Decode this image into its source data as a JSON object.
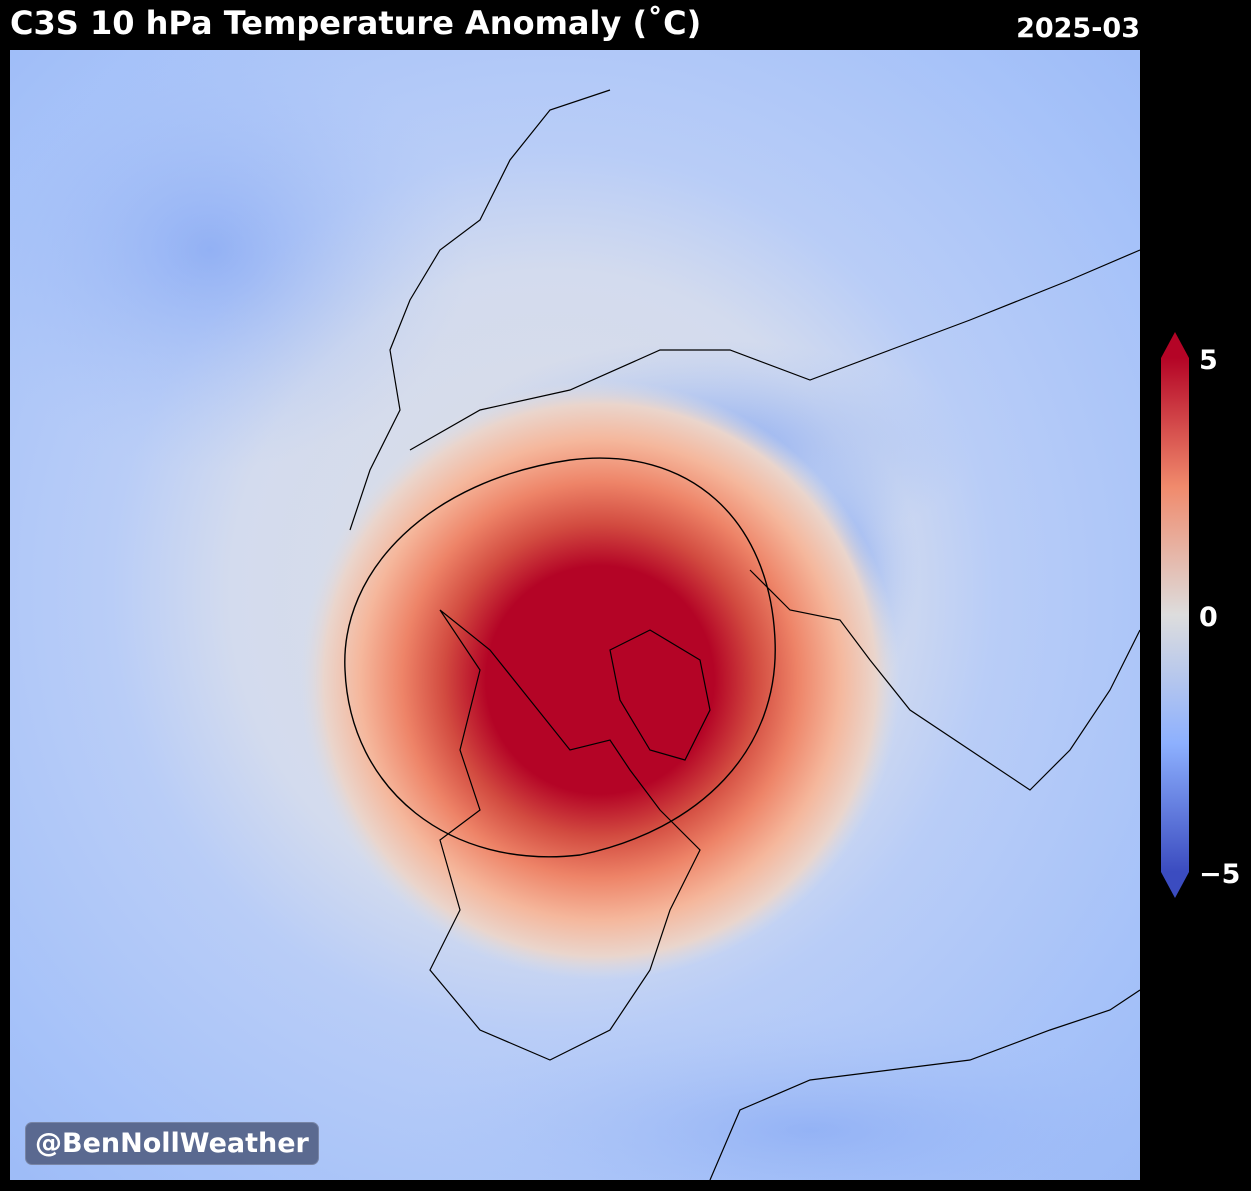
{
  "header": {
    "title": "C3S 10 hPa Temperature Anomaly (˚C)",
    "date": "2025-03"
  },
  "map": {
    "projection": "north-polar-stereographic",
    "feature": "warm anomaly centered over the Canadian Arctic and Greenland; cool anomalies elsewhere",
    "colormap": "coolwarm"
  },
  "colorbar": {
    "min": -5,
    "max": 5,
    "tick_labels": [
      "5",
      "0",
      "−5"
    ],
    "colors": {
      "cold": "#3b4cc0",
      "neutral": "#dddddd",
      "warm": "#b40426"
    }
  },
  "watermark": "@BenNollWeather"
}
